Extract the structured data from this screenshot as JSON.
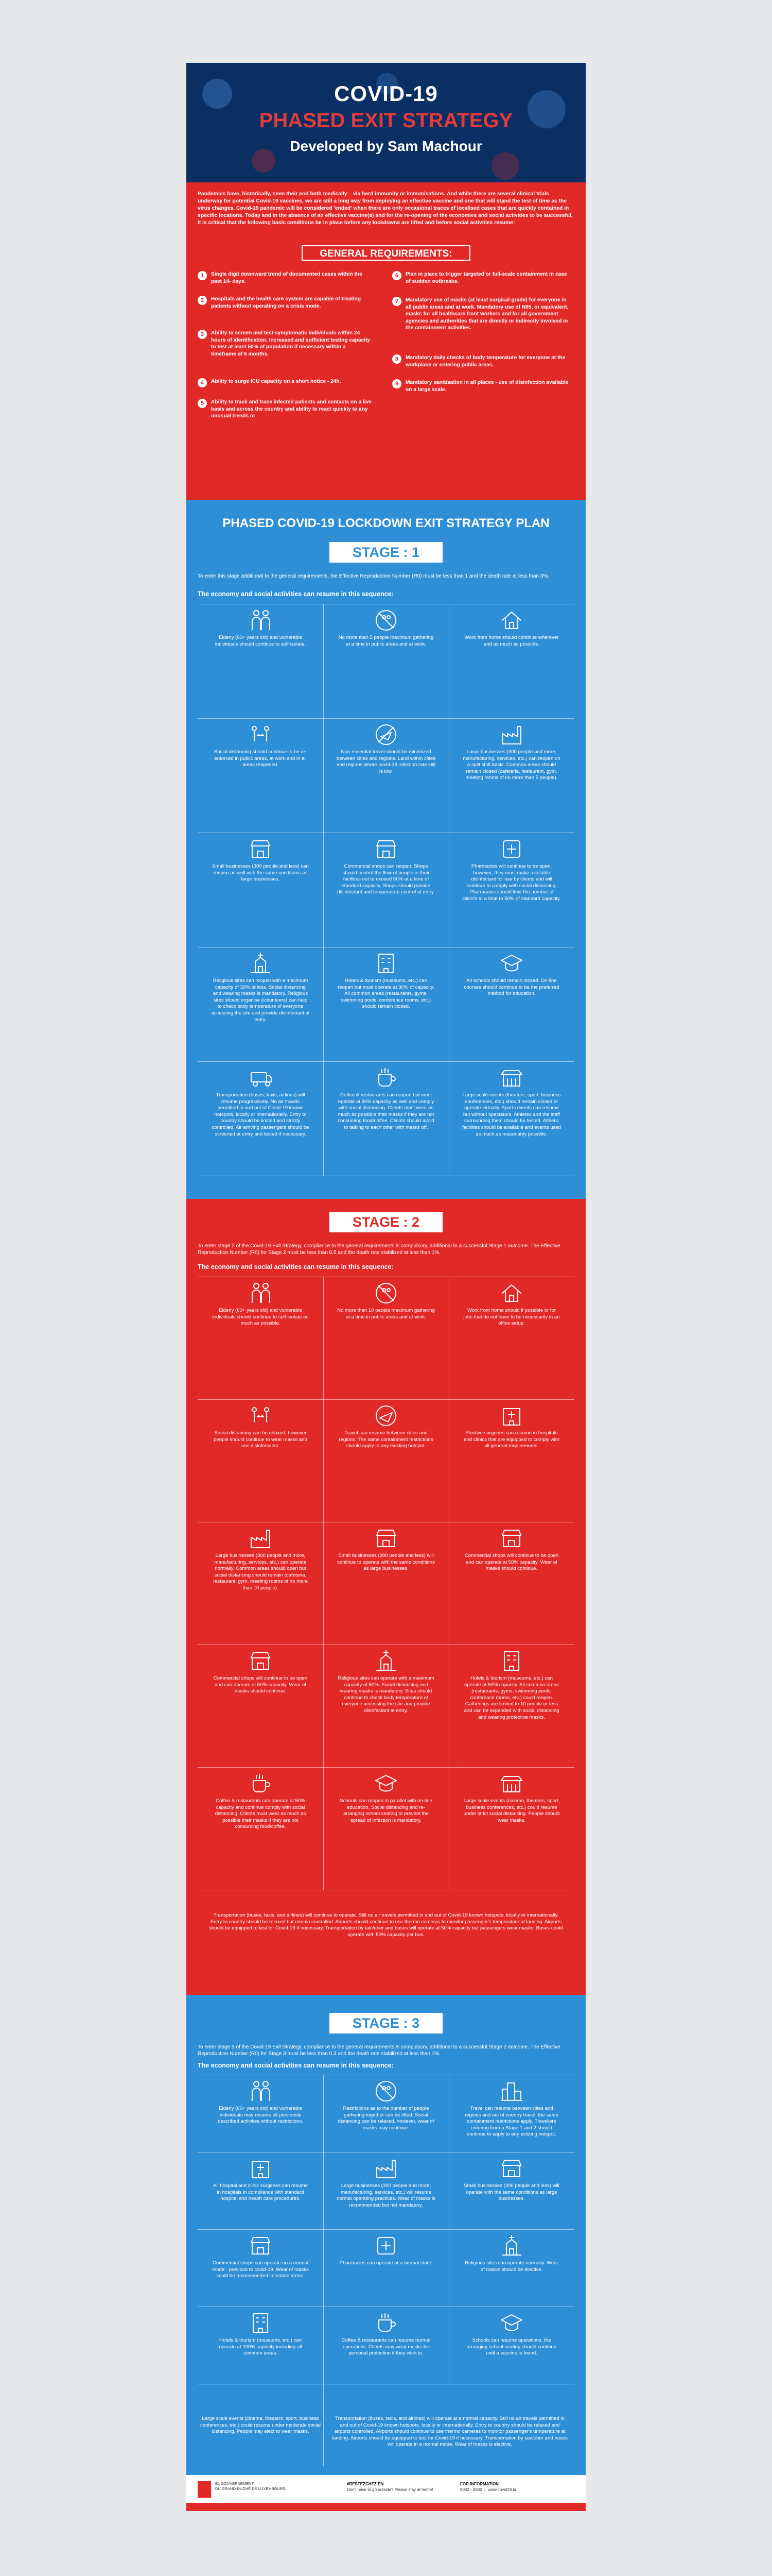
{
  "header": {
    "title1": "COVID-19",
    "title2": "PHASED EXIT STRATEGY",
    "title3": "Developed by Sam Machour"
  },
  "intro": "Pandemics have, historically, seen their end both medically – via herd immunity or immunisations. And while there are several clinical trials underway for potential Covid-19 vaccines, we are still a long way from deploying an effective vaccine and one that will stand the test of time as the virus changes. Covid-19 pandemic will be considered 'ended' when there are only occasional traces of localised cases that are quickly contained in specific locations. Today and in the absence of an effective vaccine(s) and for the re-opening of the economies and social activities to be successful, it is critical that the following basic conditions be in place before any lockdowns are lifted and before social activities resume:",
  "general_requirements": {
    "title": "GENERAL REQUIREMENTS:",
    "items": [
      {
        "num": "1",
        "text": "Single digit downward trend of documented cases within the past 14- days."
      },
      {
        "num": "2",
        "text": "Hospitals and the health care system are capable of treating patients without operating on a crisis mode."
      },
      {
        "num": "3",
        "text": "Ability to screen and test symptomatic individuals within 24 hours of identification. Increased and sufficient testing capacity to test at least 50% of population if necessary within a timeframe of 6 months."
      },
      {
        "num": "4",
        "text": "Ability to surge ICU capacity on a short notice - 24h."
      },
      {
        "num": "5",
        "text": "Ability to track and trace infected patients and contacts on a live basis and across the country and ability to react quickly to any unusual trends or"
      },
      {
        "num": "6",
        "text": "Plan in place to trigger targeted or full-scale containment in case of sudden outbreaks."
      },
      {
        "num": "7",
        "text": "Mandatory use of masks (at least surgical-grade) for everyone in all public areas and at work. Mandatory use of N95, or equivalent, masks for all healthcare front workers and for all government agencies and authorities that are directly or indirectly involved in the containment activities."
      },
      {
        "num": "8",
        "text": "Mandatory daily checks of body temperature for everyone at the workplace or entering public areas."
      },
      {
        "num": "9",
        "text": "Mandatory sanitisation in all places - use of disinfection available on a large scale."
      }
    ]
  },
  "plan_title": "PHASED COVID-19 LOCKDOWN EXIT STRATEGY PLAN",
  "stage1": {
    "badge": "STAGE : 1",
    "intro": "To enter this stage additional to the general requirements, the Effective Reproduction Number (R0) must be less than 1 and the death rate at less than 3%.",
    "sub": "The economy and social activities can resume in this sequence:",
    "cells": [
      {
        "icon": "elderly-icon",
        "text": "Elderly (60+ years old) and vulnerable individuals should continue to self-isolate."
      },
      {
        "icon": "no-gathering-icon",
        "text": "No more than 5 people maximum gathering at a time in public areas and at work."
      },
      {
        "icon": "home-icon",
        "text": "Work from home should continue wherever and as much as possible."
      },
      {
        "icon": "social-distancing-icon",
        "text": "Social distancing should continue to be re-enforced in public areas, at work and in all areas reopened."
      },
      {
        "icon": "no-travel-icon",
        "text": "Non-essential travel should be minimized between cities and regions. Land within cities and regions where covid-19 infection rate still is low."
      },
      {
        "icon": "factory-icon",
        "text": "Large businesses (300 people and more, manufacturing, services, etc.) can reopen on a split shift basis. Common areas should remain closed (cafeteria, restaurant, gym, meeting rooms of no more than 5 people)."
      },
      {
        "icon": "shop-icon",
        "text": "Small businesses (300 people and less) can reopen as well with the same conditions as large businesses."
      },
      {
        "icon": "store-icon",
        "text": "Commercial shops can reopen. Shops should control the flow of people in their facilities not to exceed 50% at a time of standard capacity. Shops should provide disinfectant and temperature control at entry."
      },
      {
        "icon": "pharmacy-icon",
        "text": "Pharmacies will continue to be open, however, they must make available disinfectant for use by clients and will continue to comply with social distancing. Pharmacies should limit the number of client's at a time to 50% of standard capacity."
      },
      {
        "icon": "church-icon",
        "text": "Religious sites can reopen with a maximum capacity of 30% or less. Social distancing and wearing masks is mandatory. Religious sites should organise (volunteers) can help to check body temperature of everyone accessing the site and provide disinfectant at entry."
      },
      {
        "icon": "hotel-icon",
        "text": "Hotels & tourism (museums, etc.) can reopen but must operate at 30% of capacity. All common areas (restaurants, gyms, swimming pools, conference rooms, etc.) should remain closed."
      },
      {
        "icon": "school-icon",
        "text": "All schools should remain closed. On-line courses should continue to be the preferred method for education."
      },
      {
        "icon": "transport-icon",
        "text": "Transportation (buses, taxis, airlines) will resume progressively. No air travels permitted in and out of Covid-19 known hotspots, locally or internationally. Entry to country should be limited and strictly controlled. Air arriving passengers should be screened at entry and tested if necessary."
      },
      {
        "icon": "coffee-icon",
        "text": "Coffee & restaurants can reopen but must operate at 30% capacity as well and comply with social distancing. Clients must wear as much as possible their masks if they are not consuming food/coffee. Clients should avoid to talking to each other with masks off."
      },
      {
        "icon": "stadium-icon",
        "text": "Large scale events (theaters, sport, business conferences, etc.) should remain closed or operate virtually. Sports events can resume but without spectators. Athletes and the staff surrounding them should be tested. Athletic facilities should be available and events used as much as reasonably possible."
      }
    ]
  },
  "stage2": {
    "badge": "STAGE : 2",
    "intro": "To enter stage 2 of the Covid-19 Exit Strategy, compliance to the general requirements is compulsory, additional to a successful Stage 1 outcome. The Effective Reproduction Number (R0) for Stage 2 must be less than 0.5 and the death rate stabilized at less than 1%.",
    "sub": "The economy and social activities can resume in this sequence:",
    "cells": [
      {
        "icon": "elderly-icon",
        "text": "Elderly (60+ years old) and vulnerable individuals should continue to self-isolate as much as possible."
      },
      {
        "icon": "no-gathering-icon",
        "text": "No more than 10 people maximum gathering at a time in public areas and at work."
      },
      {
        "icon": "home-icon",
        "text": "Work from home should if possible or for jobs that do not have to be necessarily in an office setup."
      },
      {
        "icon": "social-distancing-icon",
        "text": "Social distancing can be relaxed, however people should continue to wear masks and use disinfectants."
      },
      {
        "icon": "travel-icon",
        "text": "Travel can resume between cities and regions. The same containment restrictions should apply to any existing hotspot."
      },
      {
        "icon": "hospital-icon",
        "text": "Elective surgeries can resume in hospitals and clinics that are equipped to comply with all general requirements."
      },
      {
        "icon": "factory-icon",
        "text": "Large businesses (300 people and more, manufacturing, services, etc.) can operate normally. Common areas should open but social distancing should remain (cafeteria, restaurant, gym, meeting rooms of no more than 10 people)."
      },
      {
        "icon": "shop-icon",
        "text": "Small businesses (300 people and less) will continue to operate with the same conditions as large businesses."
      },
      {
        "icon": "store-icon",
        "text": "Commercial shops will continue to be open and can operate at 50% capacity. Wear of masks should continue."
      },
      {
        "icon": "store2-icon",
        "text": "Commercial shops will continue to be open and can operate at 50% capacity. Wear of masks should continue."
      },
      {
        "icon": "church-icon",
        "text": "Religious sites can operate with a maximum capacity of 50%. Social distancing and wearing masks is mandatory. Sites should continue to check body temperature of everyone accessing the site and provide disinfectant at entry."
      },
      {
        "icon": "hotel-icon",
        "text": "Hotels & tourism (museums, etc.) can operate at 50% capacity. All common areas (restaurants, gyms, swimming pools, conference rooms, etc.) could reopen. Gatherings are limited to 10 people or less and can be expanded with social distancing and wearing protective masks."
      },
      {
        "icon": "coffee-icon",
        "text": "Coffee & restaurants can operate at 50% capacity and continue comply with social distancing. Clients must wear as much as possible their masks if they are not consuming food/coffee."
      },
      {
        "icon": "school-icon",
        "text": "Schools can reopen in parallel with on-line education. Social distancing and re-arranging school seating to prevent the spread of infection is mandatory."
      },
      {
        "icon": "stadium-icon",
        "text": "Large scale events (cinema, theaters, sport, business conferences, etc.) could resume under strict social distancing. People should wear masks."
      }
    ],
    "transport": "Transportation (buses, taxis, and airlines) will continue to operate. Still no air travels permitted in and out of Covid-19 known hotspots, locally or internationally. Entry to country should be relaxed but remain controlled. Airports should continue to use thermo cameras to monitor passenger's temperature at landing. Airports should be equipped to test for Covid-19 if necessary. Transportation by taxi/uber and buses will operate at 50% capacity but passengers wear masks. Buses could operate with 50% capacity per bus."
  },
  "stage3": {
    "badge": "STAGE : 3",
    "intro": "To enter stage 3 of the Covid-19 Exit Strategy, compliance to the general requirements is compulsory, additional to a successful Stage 2 outcome. The Effective Reproduction Number (R0) for Stage 3 must be less than 0.3 and the death rate stabilized at less than 1%.",
    "sub": "The economy and social activities can resume in this sequence:",
    "cells": [
      {
        "icon": "elderly-icon",
        "text": "Elderly (60+ years old) and vulnerable individuals may resume all previously described activities without restrictions."
      },
      {
        "icon": "no-gathering-icon",
        "text": "Restrictions as to the number of people gathering together can be lifted. Social distancing can be relaxed, however, wear of masks may continue."
      },
      {
        "icon": "city-icon",
        "text": "Travel can resume between cities and regions and out of country travel; the same containment restrictions apply. Travellers entering from a Stage 1 and 2 should continue to apply to any existing hotspot."
      },
      {
        "icon": "hospital-icon",
        "text": "All hospital and clinic surgeries can resume in hospitals in compliance with standard hospital and health care procedures."
      },
      {
        "icon": "factory-icon",
        "text": "Large businesses (300 people and more, manufacturing, services, etc.) will resume normal operating practices. Wear of masks is recommended but not mandatory."
      },
      {
        "icon": "shop-icon",
        "text": "Small businesses (300 people and less) will operate with the same conditions as large businesses."
      },
      {
        "icon": "store-icon",
        "text": "Commercial shops can operate on a normal mode - previous to covid-19. Wear of masks could be recommended in certain areas."
      },
      {
        "icon": "pharmacy-icon",
        "text": "Pharmacies can operate at a normal state."
      },
      {
        "icon": "church-icon",
        "text": "Religious sites can operate normally. Wear of masks should be elective."
      },
      {
        "icon": "hotel-icon",
        "text": "Hotels & tourism (museums, etc.) can operate at 100% capacity including all common areas."
      },
      {
        "icon": "coffee-icon",
        "text": "Coffee & restaurants can resume normal operations. Clients may wear masks for personal protection if they wish to."
      },
      {
        "icon": "school-icon",
        "text": "Schools can resume operations, the arranging school seating should continue until a vaccine is found."
      }
    ],
    "events": "Large scale events (cinema, theaters, sport, business conferences, etc.) could resume under moderate social distancing. People may elect to wear masks.",
    "transport": "Transportation (buses, taxis, and airlines) will operate at a normal capacity. Still no air travels permitted in and out of Covid-19 known hotspots, locally or internationally. Entry to country should be relaxed and airports controlled. Airports should continue to use thermo cameras to monitor passenger's temperature at landing. Airports should be equipped to test for Covid-19 if necessary. Transportation by taxi/uber and buses will operate in a normal mode. Wear of masks is elective."
  },
  "footer": {
    "org_line1": "EL GOUVERNEMENT",
    "org_line2": "DU GRAND-DUCHÉ DE LUXEMBOURG",
    "hashtag": "#RESTEZCHEZ EN",
    "slogan": "Don't have to go outside? Please stay at home!",
    "info_title": "FOR INFORMATION",
    "info_phone": "8002 - 8080",
    "info_web": "www.covid19.lu"
  },
  "colors": {
    "red": "#e12a28",
    "blue": "#2f8fd6",
    "navy": "#0b2f62"
  }
}
